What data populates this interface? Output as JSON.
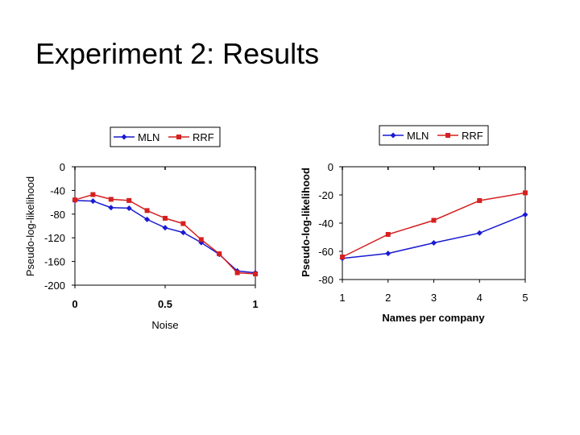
{
  "slide": {
    "title": "Experiment 2: Results"
  },
  "colors": {
    "MLN": "#1a1ad0",
    "RRF": "#d62020"
  },
  "chart_data": [
    {
      "type": "line",
      "title": "",
      "xlabel": "Noise",
      "ylabel": "Pseudo-log-likelihood",
      "xlim": [
        0,
        1
      ],
      "ylim": [
        -200,
        0
      ],
      "xticks": [
        0,
        0.5,
        1
      ],
      "xtick_labels": [
        "0",
        "0.5",
        "1"
      ],
      "yticks": [
        0,
        -40,
        -80,
        -120,
        -160,
        -200
      ],
      "ytick_labels": [
        "0",
        "-40",
        "-80",
        "-120",
        "-160",
        "-200"
      ],
      "legend": "top",
      "series": [
        {
          "name": "MLN",
          "marker": "diamond",
          "x": [
            0,
            0.1,
            0.2,
            0.3,
            0.4,
            0.5,
            0.6,
            0.7,
            0.8,
            0.9,
            1.0
          ],
          "values": [
            -57,
            -58,
            -69,
            -70,
            -89,
            -103,
            -111,
            -128,
            -148,
            -176,
            -179
          ]
        },
        {
          "name": "RRF",
          "marker": "square",
          "x": [
            0,
            0.1,
            0.2,
            0.3,
            0.4,
            0.5,
            0.6,
            0.7,
            0.8,
            0.9,
            1.0
          ],
          "values": [
            -56,
            -47,
            -55,
            -57,
            -74,
            -87,
            -96,
            -123,
            -147,
            -179,
            -181
          ]
        }
      ]
    },
    {
      "type": "line",
      "title": "",
      "xlabel": "Names per company",
      "ylabel": "Pseudo-log-likelihood",
      "xlim": [
        1,
        5
      ],
      "ylim": [
        -80,
        0
      ],
      "xticks": [
        1,
        2,
        3,
        4,
        5
      ],
      "xtick_labels": [
        "1",
        "2",
        "3",
        "4",
        "5"
      ],
      "yticks": [
        0,
        -20,
        -40,
        -60,
        -80
      ],
      "ytick_labels": [
        "0",
        "-20",
        "-40",
        "-60",
        "-80"
      ],
      "legend": "top",
      "series": [
        {
          "name": "MLN",
          "marker": "diamond",
          "x": [
            1,
            2,
            3,
            4,
            5
          ],
          "values": [
            -65,
            -61.5,
            -54,
            -47,
            -34
          ]
        },
        {
          "name": "RRF",
          "marker": "square",
          "x": [
            1,
            2,
            3,
            4,
            5
          ],
          "values": [
            -64,
            -48,
            -38,
            -24,
            -18.5
          ]
        }
      ]
    }
  ]
}
